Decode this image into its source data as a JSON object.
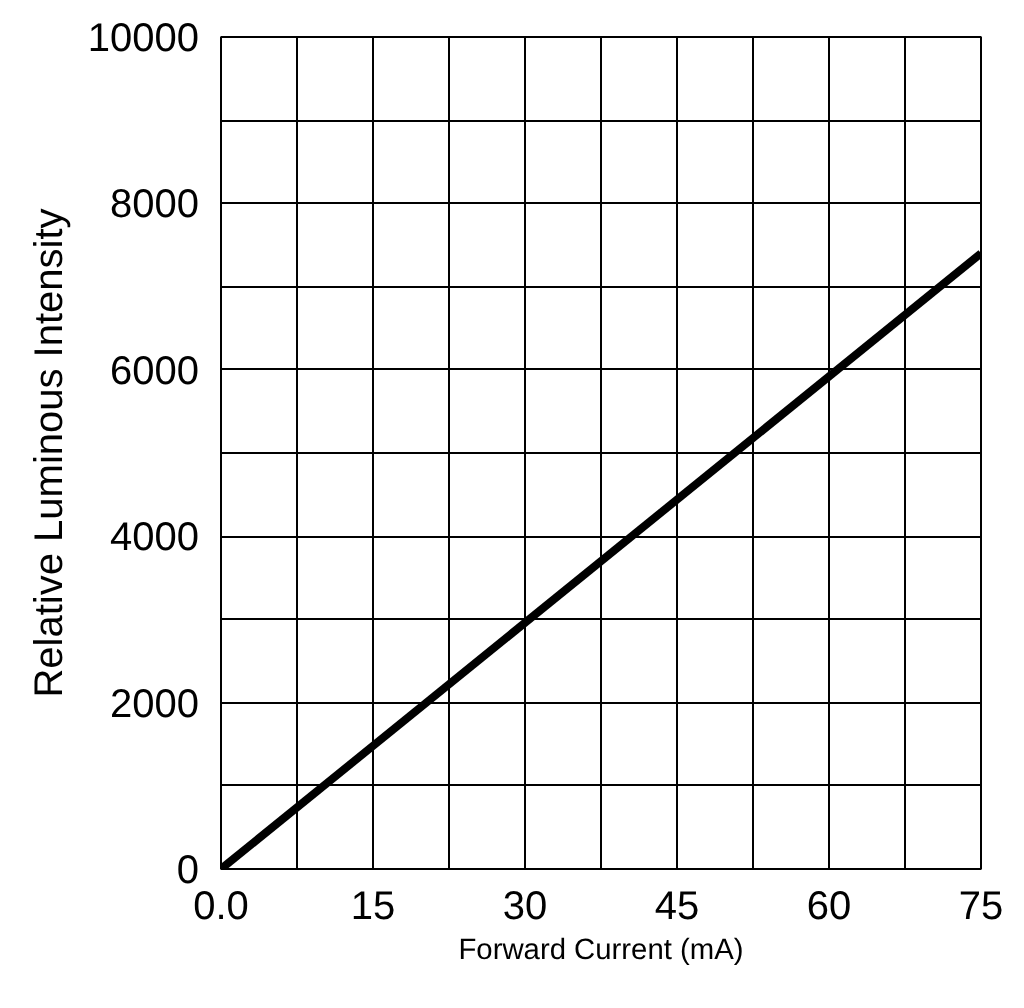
{
  "chart_data": {
    "type": "line",
    "xlabel": "Forward Current (mA)",
    "ylabel": "Relative Luminous Intensity",
    "x": [
      0,
      75
    ],
    "series": [
      {
        "color": "#000000",
        "values": [
          0,
          7400
        ]
      }
    ],
    "xlim": [
      0,
      75
    ],
    "xticks": [
      {
        "value": 0,
        "label": "0.0"
      },
      {
        "value": 7.5,
        "label": null
      },
      15,
      {
        "value": 22.5,
        "label": null
      },
      30,
      {
        "value": 37.5,
        "label": null
      },
      45,
      {
        "value": 52.5,
        "label": null
      },
      60,
      {
        "value": 67.5,
        "label": null
      },
      75
    ],
    "ylim": [
      0,
      10000
    ],
    "yticks": [
      0,
      {
        "value": 1000,
        "label": null
      },
      2000,
      {
        "value": 3000,
        "label": null
      },
      4000,
      {
        "value": 5000,
        "label": null
      },
      6000,
      {
        "value": 7000,
        "label": null
      },
      8000,
      {
        "value": 9000,
        "label": null
      },
      10000
    ],
    "grid": true,
    "marker": "none",
    "line_style": "solid"
  }
}
